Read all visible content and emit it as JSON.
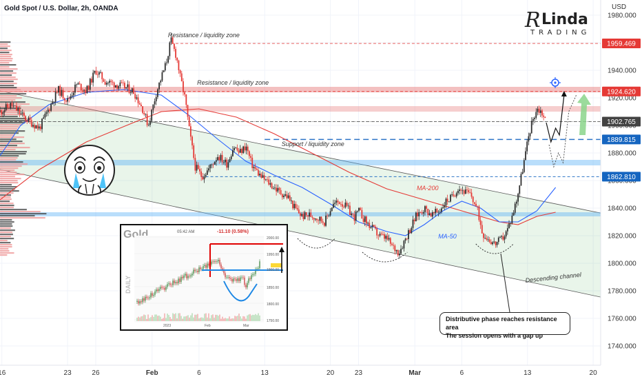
{
  "header": {
    "title": "Gold Spot / U.S. Dollar, 2h, OANDA",
    "currency": "USD"
  },
  "logo": {
    "initial": "R",
    "name": "Linda",
    "sub": "TRADING"
  },
  "chart_data": {
    "type": "line",
    "series_kind": "candlestick",
    "y_axis_ticks": [
      1980,
      1960,
      1940,
      1920,
      1900,
      1880,
      1860,
      1840,
      1820,
      1800,
      1780,
      1760,
      1740
    ],
    "y_axis_tick_labels": [
      "1980.000",
      "1960.000",
      "1940.000",
      "1920.000",
      "1900.000",
      "1880.000",
      "1860.000",
      "1840.000",
      "1820.000",
      "1800.000",
      "1780.000",
      "1760.000",
      "1740.000"
    ],
    "ylim": [
      1726,
      1991
    ],
    "x_ticks": [
      {
        "day": 16,
        "label": "16"
      },
      {
        "day": 23,
        "label": "23"
      },
      {
        "day": 26,
        "label": "26"
      },
      {
        "day": 32,
        "label": "Feb"
      },
      {
        "day": 37,
        "label": "6"
      },
      {
        "day": 44,
        "label": "13"
      },
      {
        "day": 51,
        "label": "20"
      },
      {
        "day": 54,
        "label": "23"
      },
      {
        "day": 60,
        "label": "Mar"
      },
      {
        "day": 65,
        "label": "6"
      },
      {
        "day": 72,
        "label": "13"
      },
      {
        "day": 79,
        "label": "20"
      }
    ],
    "xlim": [
      15.8,
      79.8
    ],
    "price_labels": [
      {
        "value": 1959.469,
        "label": "1959.469",
        "color": "#e53935"
      },
      {
        "value": 1924.62,
        "label": "1924.620",
        "color": "#e53935"
      },
      {
        "value": 1902.765,
        "label": "1902.765",
        "color": "#424242"
      },
      {
        "value": 1889.815,
        "label": "1889.815",
        "color": "#1565c0"
      },
      {
        "value": 1862.81,
        "label": "1862.810",
        "color": "#1565c0"
      }
    ],
    "price_path": [
      [
        15.8,
        1910
      ],
      [
        17,
        1915
      ],
      [
        18.5,
        1905
      ],
      [
        20,
        1898
      ],
      [
        21,
        1912
      ],
      [
        22,
        1926
      ],
      [
        23,
        1918
      ],
      [
        24,
        1930
      ],
      [
        25,
        1925
      ],
      [
        26,
        1940
      ],
      [
        27,
        1932
      ],
      [
        28,
        1930
      ],
      [
        29,
        1928
      ],
      [
        30,
        1925
      ],
      [
        31,
        1912
      ],
      [
        31.6,
        1900
      ],
      [
        32.5,
        1925
      ],
      [
        33.5,
        1945
      ],
      [
        34,
        1962
      ],
      [
        34.6,
        1950
      ],
      [
        35,
        1935
      ],
      [
        35.5,
        1920
      ],
      [
        36,
        1895
      ],
      [
        36.6,
        1870
      ],
      [
        37.3,
        1863
      ],
      [
        38,
        1868
      ],
      [
        39,
        1878
      ],
      [
        40,
        1872
      ],
      [
        40.7,
        1885
      ],
      [
        41.3,
        1880
      ],
      [
        42,
        1885
      ],
      [
        42.6,
        1872
      ],
      [
        43,
        1868
      ],
      [
        43.7,
        1862
      ],
      [
        44.5,
        1858
      ],
      [
        45.5,
        1852
      ],
      [
        46.5,
        1848
      ],
      [
        47.2,
        1840
      ],
      [
        48,
        1834
      ],
      [
        48.8,
        1835
      ],
      [
        49.6,
        1833
      ],
      [
        50.4,
        1830
      ],
      [
        51.2,
        1842
      ],
      [
        52,
        1845
      ],
      [
        52.8,
        1840
      ],
      [
        53.5,
        1833
      ],
      [
        54,
        1838
      ],
      [
        54.8,
        1830
      ],
      [
        55.5,
        1825
      ],
      [
        56.2,
        1820
      ],
      [
        57,
        1818
      ],
      [
        57.6,
        1812
      ],
      [
        58.3,
        1808
      ],
      [
        59,
        1818
      ],
      [
        59.5,
        1825
      ],
      [
        60.2,
        1835
      ],
      [
        61,
        1840
      ],
      [
        61.8,
        1835
      ],
      [
        62.6,
        1838
      ],
      [
        63.3,
        1845
      ],
      [
        64,
        1848
      ],
      [
        64.6,
        1855
      ],
      [
        65.3,
        1852
      ],
      [
        66,
        1849
      ],
      [
        66.7,
        1838
      ],
      [
        67.2,
        1822
      ],
      [
        67.8,
        1818
      ],
      [
        68.5,
        1814
      ],
      [
        69.2,
        1817
      ],
      [
        69.8,
        1823
      ],
      [
        70.4,
        1835
      ],
      [
        70.9,
        1848
      ],
      [
        71.3,
        1862
      ],
      [
        71.8,
        1880
      ],
      [
        72.2,
        1895
      ],
      [
        72.6,
        1905
      ],
      [
        73,
        1912
      ],
      [
        73.5,
        1910
      ],
      [
        74,
        1902
      ]
    ],
    "ma200": [
      [
        15.8,
        1846
      ],
      [
        20,
        1868
      ],
      [
        25,
        1888
      ],
      [
        30,
        1902
      ],
      [
        33,
        1910
      ],
      [
        37,
        1912
      ],
      [
        41,
        1906
      ],
      [
        45,
        1894
      ],
      [
        49,
        1880
      ],
      [
        53,
        1866
      ],
      [
        57,
        1854
      ],
      [
        61,
        1846
      ],
      [
        64,
        1840
      ],
      [
        67,
        1834
      ],
      [
        69,
        1830
      ],
      [
        71,
        1828
      ],
      [
        73,
        1834
      ],
      [
        75,
        1837
      ]
    ],
    "ma50": [
      [
        15.8,
        1878
      ],
      [
        18,
        1900
      ],
      [
        21,
        1915
      ],
      [
        25,
        1924
      ],
      [
        29,
        1926
      ],
      [
        33,
        1922
      ],
      [
        36,
        1907
      ],
      [
        39,
        1890
      ],
      [
        42,
        1874
      ],
      [
        45,
        1864
      ],
      [
        48,
        1855
      ],
      [
        51,
        1843
      ],
      [
        54,
        1830
      ],
      [
        57,
        1823
      ],
      [
        59,
        1820
      ],
      [
        61,
        1828
      ],
      [
        63,
        1838
      ],
      [
        65,
        1845
      ],
      [
        67,
        1840
      ],
      [
        69,
        1830
      ],
      [
        71,
        1830
      ],
      [
        73,
        1838
      ],
      [
        75,
        1855
      ]
    ],
    "channel_upper": [
      [
        15.8,
        1925
      ],
      [
        80.1,
        1836
      ]
    ],
    "channel_lower": [
      [
        15.8,
        1868
      ],
      [
        80.1,
        1775
      ]
    ],
    "support_zone": [
      1871,
      1875
    ],
    "support_zone2": [
      1834,
      1837
    ],
    "resistance_zone": [
      1924,
      1928
    ],
    "resistance_zone2": [
      1910,
      1914
    ],
    "projection_solid": [
      [
        74,
        1902
      ],
      [
        74.5,
        1888
      ],
      [
        75,
        1898
      ],
      [
        75.4,
        1893
      ],
      [
        75.9,
        1922
      ]
    ],
    "projection_dotted": [
      [
        74.3,
        1886
      ],
      [
        74.8,
        1870
      ],
      [
        75.3,
        1880
      ],
      [
        75.8,
        1873
      ],
      [
        76.4,
        1910
      ],
      [
        77.2,
        1922
      ]
    ],
    "annotations": [
      {
        "text": "Resistance / liquidity zone",
        "x": 33.7,
        "y": 1964
      },
      {
        "text": "Resistance / liquidity zone",
        "x": 36.8,
        "y": 1929.5
      },
      {
        "text": "Support / liquidity zone",
        "x": 45.8,
        "y": 1885
      },
      {
        "text": "MA-200",
        "x": 60.2,
        "y": 1853
      },
      {
        "text": "MA-50",
        "x": 62.5,
        "y": 1818
      },
      {
        "text": "Descending channel",
        "x": 71.8,
        "y": 1786
      }
    ],
    "callout": {
      "line1": "Distributive phase reaches resistance area",
      "line2": "The session opens with a gap up"
    },
    "inset": {
      "title": "Gold",
      "time": "05:42 AM",
      "change": "-11.10 (0.58%)",
      "axis_label": "DAILY",
      "price_ticks": [
        "2000.00",
        "1950.00",
        "1900.00",
        "1850.00",
        "1800.00",
        "1750.00"
      ],
      "x_ticks": [
        "2023",
        "Feb",
        "Mar"
      ]
    }
  }
}
